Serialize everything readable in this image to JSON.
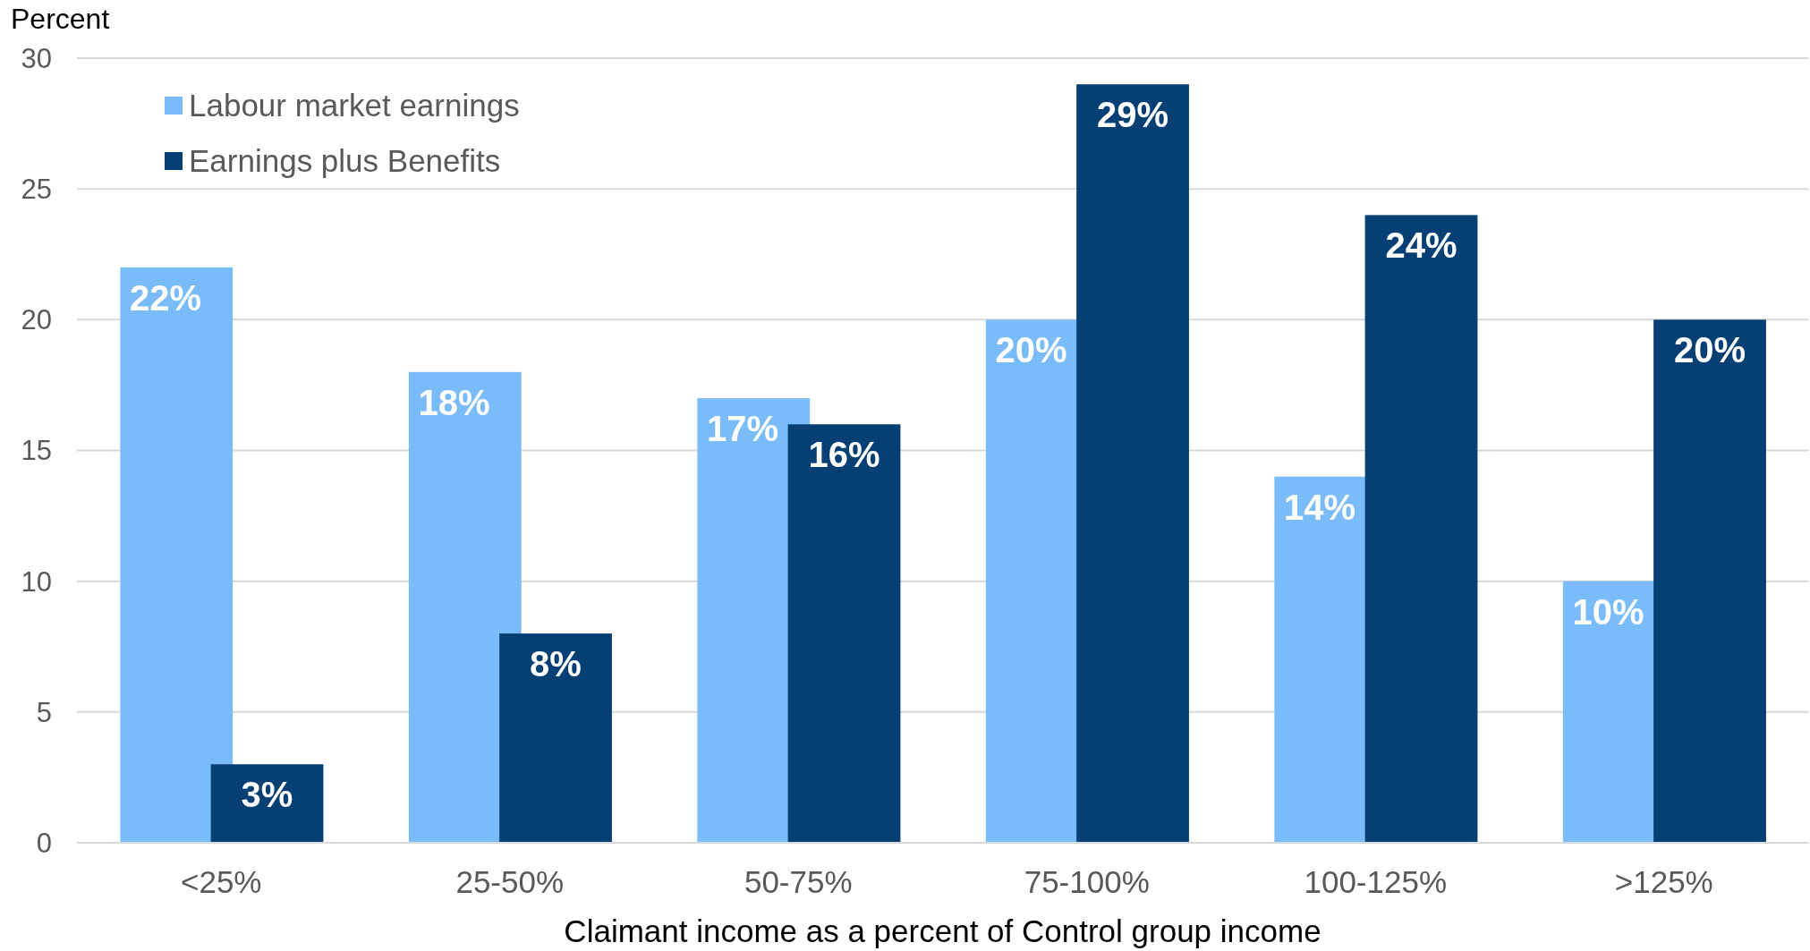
{
  "chart_data": {
    "type": "bar",
    "ylabel": "Percent",
    "xlabel": "Claimant income as a percent of Control group income",
    "categories": [
      "<25%",
      "25-50%",
      "50-75%",
      "75-100%",
      "100-125%",
      ">125%"
    ],
    "series": [
      {
        "name": "Labour market earnings",
        "color": "#79bcf9",
        "values": [
          22,
          18,
          17,
          20,
          14,
          10
        ],
        "value_labels": [
          "22%",
          "18%",
          "17%",
          "20%",
          "14%",
          "10%"
        ]
      },
      {
        "name": "Earnings plus Benefits",
        "color": "#053f74",
        "values": [
          3,
          8,
          16,
          29,
          24,
          20
        ],
        "value_labels": [
          "3%",
          "8%",
          "16%",
          "29%",
          "24%",
          "20%"
        ]
      }
    ],
    "ylim": [
      0,
      30
    ],
    "yticks": [
      0,
      5,
      10,
      15,
      20,
      25,
      30
    ],
    "grid": "y",
    "legend": "top left"
  }
}
